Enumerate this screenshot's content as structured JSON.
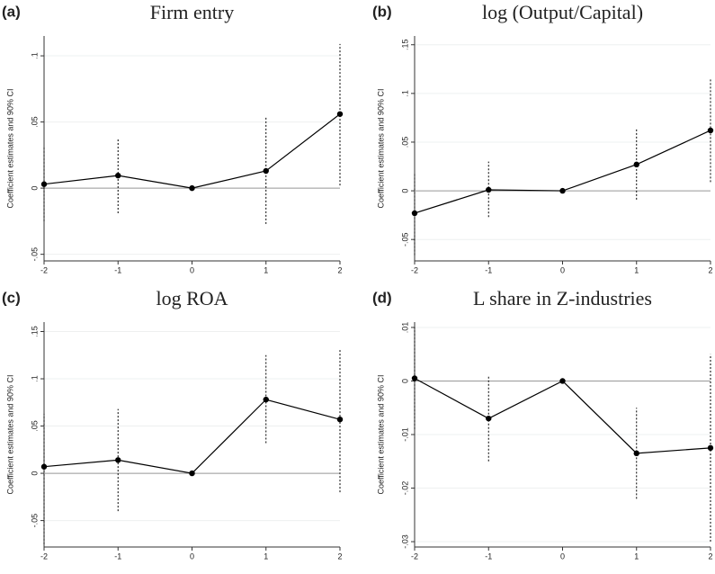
{
  "chart_data": [
    {
      "type": "line",
      "label": "(a)",
      "title": "Firm entry",
      "y_label": "Coefficient estimates and 90% CI",
      "x": [
        -2,
        -1,
        0,
        1,
        2
      ],
      "series": [
        {
          "color": "#000000",
          "values": [
            0.003,
            0.0095,
            0,
            0.013,
            0.056
          ],
          "ci_lower": [
            -0.025,
            -0.019,
            null,
            -0.027,
            0.002
          ],
          "ci_upper": [
            0.031,
            0.037,
            null,
            0.054,
            0.109
          ]
        }
      ],
      "xlim": [
        -2,
        2
      ],
      "xticks": [
        -2,
        -1,
        0,
        1,
        2
      ],
      "ylim": [
        -0.055,
        0.115
      ],
      "yticks": [
        {
          "value": -0.05,
          "label": "-.05"
        },
        0,
        {
          "value": 0.05,
          "label": ".05"
        },
        {
          "value": 0.1,
          "label": ".1"
        }
      ],
      "hline": 0,
      "grid": true
    },
    {
      "type": "line",
      "label": "(b)",
      "title": "log (Output/Capital)",
      "y_label": "Coefficient estimates and 90% CI",
      "x": [
        -2,
        -1,
        0,
        1,
        2
      ],
      "series": [
        {
          "color": "#000000",
          "values": [
            -0.023,
            0.001,
            0,
            0.027,
            0.062
          ],
          "ci_lower": [
            -0.066,
            -0.027,
            null,
            -0.009,
            0.009
          ],
          "ci_upper": [
            0.018,
            0.03,
            null,
            0.063,
            0.115
          ]
        }
      ],
      "xlim": [
        -2,
        2
      ],
      "xticks": [
        -2,
        -1,
        0,
        1,
        2
      ],
      "ylim": [
        -0.072,
        0.159
      ],
      "yticks": [
        {
          "value": -0.05,
          "label": "-.05"
        },
        0,
        {
          "value": 0.05,
          "label": ".05"
        },
        {
          "value": 0.1,
          "label": ".1"
        },
        {
          "value": 0.15,
          "label": ".15"
        }
      ],
      "hline": 0,
      "grid": true
    },
    {
      "type": "line",
      "label": "(c)",
      "title": "log ROA",
      "y_label": "Coefficient estimates and 90% CI",
      "x": [
        -2,
        -1,
        0,
        1,
        2
      ],
      "series": [
        {
          "color": "#000000",
          "values": [
            0.007,
            0.014,
            0,
            0.078,
            0.057
          ],
          "ci_lower": [
            -0.075,
            -0.04,
            null,
            0.032,
            -0.02
          ],
          "ci_upper": [
            0.063,
            0.068,
            null,
            0.125,
            0.132
          ]
        }
      ],
      "xlim": [
        -2,
        2
      ],
      "xticks": [
        -2,
        -1,
        0,
        1,
        2
      ],
      "ylim": [
        -0.078,
        0.16
      ],
      "yticks": [
        {
          "value": -0.05,
          "label": "-.05"
        },
        0,
        {
          "value": 0.05,
          "label": ".05"
        },
        {
          "value": 0.1,
          "label": ".1"
        },
        {
          "value": 0.15,
          "label": ".15"
        }
      ],
      "hline": 0,
      "grid": true
    },
    {
      "type": "line",
      "label": "(d)",
      "title": "L share in Z-industries",
      "y_label": "Coefficient estimates and 90% CI",
      "x": [
        -2,
        -1,
        0,
        1,
        2
      ],
      "series": [
        {
          "color": "#000000",
          "values": [
            0.0005,
            -0.007,
            0,
            -0.0135,
            -0.0125
          ],
          "ci_lower": [
            -0.009,
            -0.015,
            null,
            -0.022,
            -0.03
          ],
          "ci_upper": [
            0.01,
            0.001,
            null,
            -0.005,
            0.005
          ]
        }
      ],
      "xlim": [
        -2,
        2
      ],
      "xticks": [
        -2,
        -1,
        0,
        1,
        2
      ],
      "ylim": [
        -0.031,
        0.011
      ],
      "yticks": [
        {
          "value": -0.03,
          "label": "-.03"
        },
        {
          "value": -0.02,
          "label": "-.02"
        },
        {
          "value": -0.01,
          "label": "-.01"
        },
        0,
        {
          "value": 0.01,
          "label": ".01"
        }
      ],
      "hline": 0,
      "grid": true
    }
  ]
}
